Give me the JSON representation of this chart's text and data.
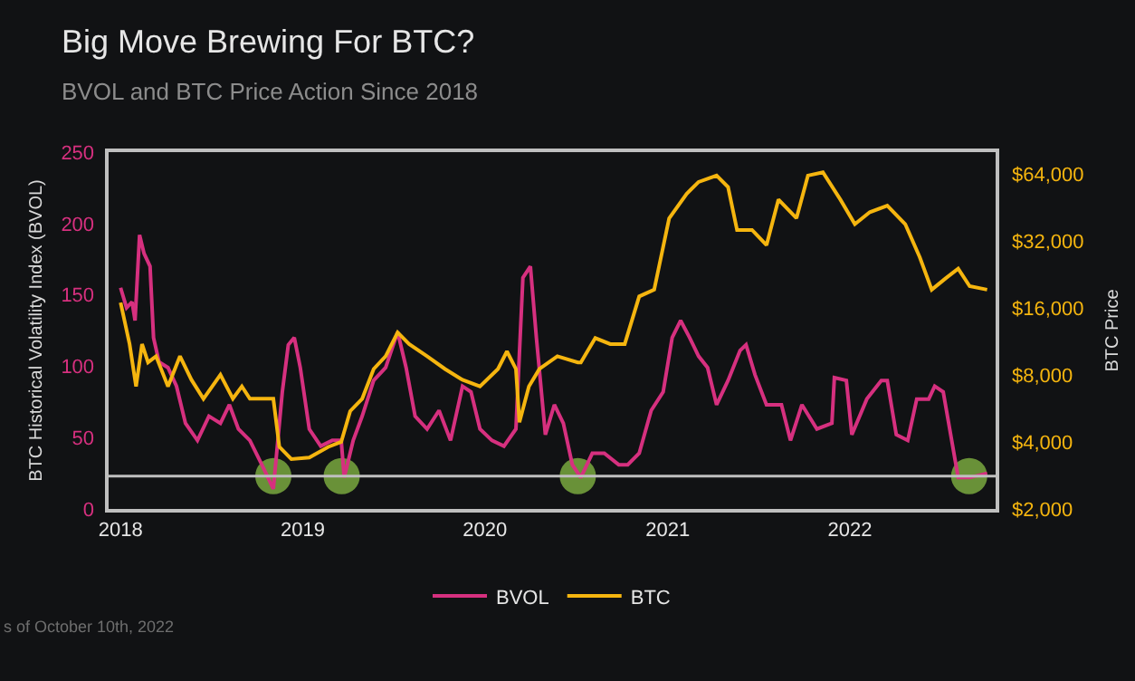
{
  "chart_data": {
    "type": "line",
    "title": "Big Move Brewing For BTC?",
    "subtitle": "BVOL and BTC Price Action Since 2018",
    "ylabel": "BTC Historical Volatility Index (BVOL)",
    "y2label": "BTC Price",
    "annotations": [
      "s of October 10th, 2022"
    ],
    "xlim": [
      "2017-12-08",
      "2022-10-20"
    ],
    "xticks": [
      "2018",
      "2019",
      "2020",
      "2021",
      "2022"
    ],
    "ylim": [
      0,
      250
    ],
    "yticks": [
      0,
      50,
      100,
      150,
      200,
      250
    ],
    "y2lim": [
      2000,
      80000
    ],
    "y2ticks": [
      {
        "value": 2000,
        "label": "$2,000"
      },
      {
        "value": 4000,
        "label": "$4,000"
      },
      {
        "value": 8000,
        "label": "$8,000"
      },
      {
        "value": 16000,
        "label": "$16,000"
      },
      {
        "value": 32000,
        "label": "$32,000"
      },
      {
        "value": 64000,
        "label": "$64,000"
      }
    ],
    "log": "y2",
    "grid": false,
    "legend": "bottom",
    "line_style": "solid",
    "marker": "none",
    "ref_lines": [
      {
        "axis": "y",
        "value": 23,
        "color": "#bfbfbf"
      }
    ],
    "series": [
      {
        "name": "BVOL",
        "color": "#d6307f",
        "x": [
          "2018-01-01",
          "2018-01-13",
          "2018-01-24",
          "2018-01-30",
          "2018-02-08",
          "2018-02-17",
          "2018-03-01",
          "2018-03-08",
          "2018-03-19",
          "2018-04-06",
          "2018-04-23",
          "2018-05-11",
          "2018-06-04",
          "2018-06-27",
          "2018-07-20",
          "2018-08-07",
          "2018-08-25",
          "2018-09-17",
          "2018-10-11",
          "2018-11-03",
          "2018-11-21",
          "2018-12-03",
          "2018-12-15",
          "2018-12-27",
          "2019-01-14",
          "2019-02-06",
          "2019-03-01",
          "2019-03-19",
          "2019-03-25",
          "2019-04-12",
          "2019-04-30",
          "2019-05-23",
          "2019-06-16",
          "2019-07-10",
          "2019-07-27",
          "2019-08-14",
          "2019-09-07",
          "2019-10-01",
          "2019-10-24",
          "2019-11-17",
          "2019-12-04",
          "2019-12-22",
          "2020-01-15",
          "2020-02-08",
          "2020-03-03",
          "2020-03-17",
          "2020-04-01",
          "2020-04-13",
          "2020-05-01",
          "2020-05-19",
          "2020-06-06",
          "2020-06-24",
          "2020-07-11",
          "2020-08-03",
          "2020-08-27",
          "2020-09-25",
          "2020-10-13",
          "2020-11-05",
          "2020-11-29",
          "2020-12-23",
          "2021-01-10",
          "2021-01-27",
          "2021-02-14",
          "2021-03-04",
          "2021-03-22",
          "2021-04-09",
          "2021-05-02",
          "2021-05-26",
          "2021-06-07",
          "2021-06-25",
          "2021-07-18",
          "2021-08-17",
          "2021-09-04",
          "2021-09-27",
          "2021-10-27",
          "2021-11-26",
          "2021-12-01",
          "2021-12-25",
          "2022-01-05",
          "2022-02-04",
          "2022-03-05",
          "2022-03-17",
          "2022-04-04",
          "2022-04-27",
          "2022-05-15",
          "2022-06-08",
          "2022-06-20",
          "2022-07-07",
          "2022-08-06",
          "2022-08-29",
          "2022-10-03"
        ],
        "values": [
          155,
          141,
          145,
          132,
          192,
          179,
          170,
          120,
          103,
          99,
          86,
          60,
          48,
          65,
          60,
          73,
          56,
          48,
          31,
          14,
          82,
          115,
          120,
          99,
          56,
          44,
          48,
          48,
          22,
          48,
          65,
          90,
          99,
          124,
          99,
          65,
          56,
          69,
          48,
          86,
          82,
          56,
          48,
          44,
          56,
          162,
          170,
          120,
          52,
          73,
          60,
          31,
          22,
          39,
          39,
          31,
          31,
          39,
          69,
          82,
          120,
          132,
          120,
          107,
          99,
          73,
          90,
          111,
          115,
          94,
          73,
          73,
          48,
          73,
          56,
          60,
          92,
          90,
          52,
          77,
          90,
          90,
          52,
          48,
          77,
          77,
          86,
          82,
          22,
          22,
          25
        ]
      },
      {
        "name": "BTC",
        "color": "#f5b50f",
        "axis": "y2",
        "x": [
          "2018-01-01",
          "2018-01-19",
          "2018-02-01",
          "2018-02-13",
          "2018-02-25",
          "2018-03-13",
          "2018-04-06",
          "2018-04-30",
          "2018-05-23",
          "2018-06-16",
          "2018-07-20",
          "2018-08-14",
          "2018-09-01",
          "2018-09-17",
          "2018-11-03",
          "2018-11-15",
          "2018-12-09",
          "2019-01-14",
          "2019-02-21",
          "2019-03-19",
          "2019-04-06",
          "2019-04-30",
          "2019-05-23",
          "2019-06-16",
          "2019-07-10",
          "2019-08-02",
          "2019-09-07",
          "2019-10-13",
          "2019-11-17",
          "2019-12-22",
          "2020-01-27",
          "2020-02-14",
          "2020-03-03",
          "2020-03-10",
          "2020-03-29",
          "2020-04-19",
          "2020-05-25",
          "2020-07-05",
          "2020-07-11",
          "2020-08-09",
          "2020-09-08",
          "2020-10-07",
          "2020-11-05",
          "2020-12-05",
          "2021-01-04",
          "2021-02-08",
          "2021-03-04",
          "2021-04-09",
          "2021-05-02",
          "2021-05-20",
          "2021-06-19",
          "2021-07-18",
          "2021-08-11",
          "2021-09-16",
          "2021-10-09",
          "2021-11-08",
          "2021-12-13",
          "2022-01-11",
          "2022-02-10",
          "2022-03-17",
          "2022-04-22",
          "2022-05-21",
          "2022-06-14",
          "2022-07-13",
          "2022-08-06",
          "2022-08-29",
          "2022-10-03"
        ],
        "values": [
          16900,
          11000,
          7100,
          11000,
          9100,
          9700,
          7100,
          9700,
          7600,
          6250,
          8000,
          6250,
          7100,
          6250,
          6250,
          3800,
          3350,
          3400,
          3800,
          4000,
          5500,
          6250,
          8500,
          9700,
          12400,
          11000,
          9700,
          8500,
          7600,
          7100,
          8500,
          10200,
          8500,
          4900,
          7100,
          8500,
          9700,
          9100,
          9100,
          11700,
          11000,
          11000,
          18000,
          19300,
          40400,
          52000,
          58800,
          62800,
          55800,
          35800,
          35800,
          30600,
          49000,
          40400,
          62800,
          65000,
          49000,
          38000,
          43000,
          46000,
          38000,
          27000,
          19300,
          21800,
          24000,
          20000,
          19300
        ]
      },
      {
        "type": "scatter",
        "color": "#7fb241",
        "marker": "circle",
        "x": [
          "2018-11-03",
          "2019-03-20",
          "2020-07-05",
          "2022-08-28"
        ],
        "values": [
          23,
          23,
          23,
          23
        ]
      }
    ]
  }
}
